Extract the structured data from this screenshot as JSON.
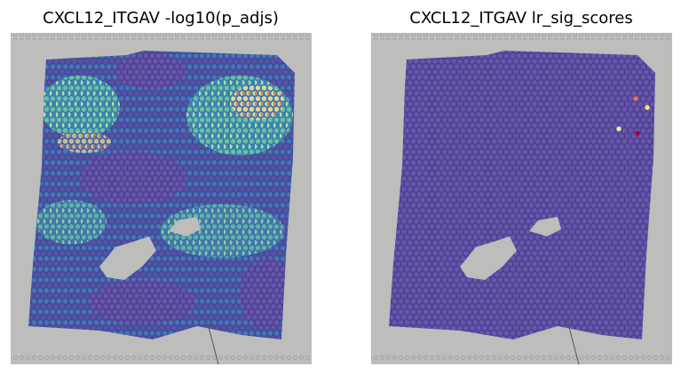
{
  "panels": [
    {
      "title": "CXCL12_ITGAV -log10(p_adjs)"
    },
    {
      "title": "CXCL12_ITGAV lr_sig_scores"
    }
  ]
}
